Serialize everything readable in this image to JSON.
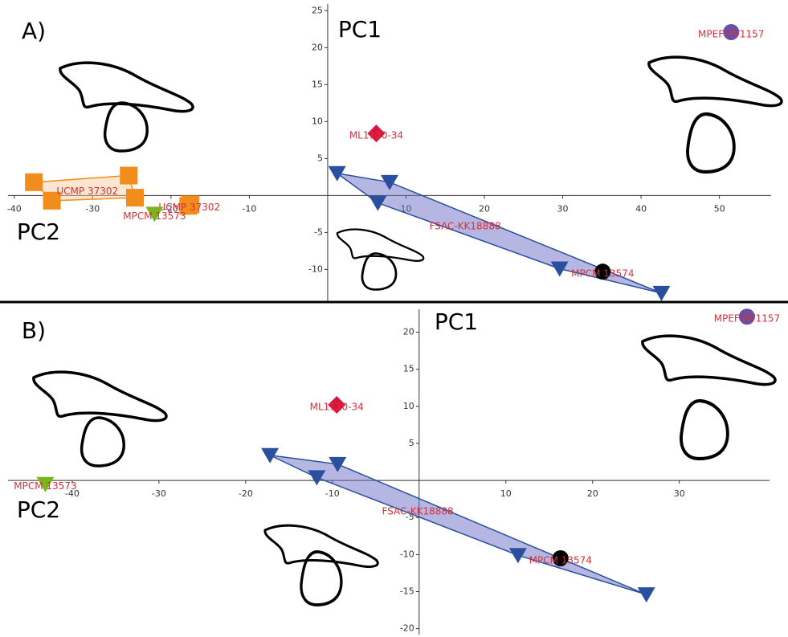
{
  "chart_data": [
    {
      "type": "scatter",
      "panel": "A)",
      "ylabel": "PC1",
      "xlabel": "PC2",
      "xlim": [
        -40.8,
        56.6
      ],
      "ylim": [
        -14.3,
        25.9
      ],
      "xticks": [
        -40,
        -30,
        -20,
        -10,
        10,
        20,
        30,
        40,
        50
      ],
      "yticks": [
        25,
        20,
        15,
        10,
        5,
        -5,
        -10
      ],
      "series": [
        {
          "name": "FSAC-KK18888",
          "color": "#2a4f9f",
          "marker": "triangle",
          "hull": true,
          "x": [
            1.2,
            7.9,
            42.6,
            29.6,
            6.4
          ],
          "y": [
            3.0,
            1.8,
            -13.2,
            -9.9,
            -1.0
          ]
        },
        {
          "name": "UCMP 37302",
          "color": "#f28c1c",
          "marker": "square",
          "hull": true,
          "x": [
            -37.5,
            -25.4,
            -24.6,
            -35.2
          ],
          "y": [
            1.8,
            2.7,
            -0.3,
            -0.7
          ]
        },
        {
          "name": "UCMP 37302",
          "color": "#f28c1c",
          "marker": "square",
          "hull": true,
          "x": [
            -17.5,
            -17.8
          ],
          "y": [
            -1.2,
            -1.4
          ]
        },
        {
          "name": "MPCM 13573",
          "color": "#7ab51d",
          "marker": "triangle",
          "hull": false,
          "x": [
            -22.1
          ],
          "y": [
            -2.5
          ]
        },
        {
          "name": "ML1120-34",
          "color": "#dc143c",
          "marker": "diamond",
          "hull": false,
          "x": [
            6.2
          ],
          "y": [
            8.4
          ]
        },
        {
          "name": "MPCM 13574",
          "color": "#000000",
          "marker": "circle",
          "hull": false,
          "x": [
            35.1
          ],
          "y": [
            -10.3
          ]
        },
        {
          "name": "MPEF-PV1157",
          "color": "#6a4fa0",
          "marker": "circle",
          "hull": false,
          "x": [
            51.5
          ],
          "y": [
            22.1
          ]
        }
      ]
    },
    {
      "type": "scatter",
      "panel": "B)",
      "ylabel": "PC1",
      "xlabel": "PC2",
      "xlim": [
        -47.4,
        40.4
      ],
      "ylim": [
        -20.8,
        23.1
      ],
      "xticks": [
        -40,
        -30,
        -20,
        -10,
        10,
        20,
        30
      ],
      "yticks": [
        20,
        15,
        10,
        5,
        -5,
        -10,
        -15,
        -20
      ],
      "series": [
        {
          "name": "FSAC-KK18888",
          "color": "#2a4f9f",
          "marker": "triangle",
          "hull": true,
          "x": [
            -17.2,
            -9.4,
            26.2,
            11.4,
            -11.8
          ],
          "y": [
            3.4,
            2.2,
            -15.4,
            -10.1,
            0.4
          ]
        },
        {
          "name": "MPCM 13573",
          "color": "#7ab51d",
          "marker": "triangle",
          "hull": false,
          "x": [
            -43.1
          ],
          "y": [
            -0.5
          ]
        },
        {
          "name": "ML1120-34",
          "color": "#dc143c",
          "marker": "diamond",
          "hull": false,
          "x": [
            -9.5
          ],
          "y": [
            10.2
          ]
        },
        {
          "name": "MPCM 13574",
          "color": "#000000",
          "marker": "circle",
          "hull": false,
          "x": [
            16.3
          ],
          "y": [
            -10.5
          ]
        },
        {
          "name": "MPEF-PV1157",
          "color": "#6a4fa0",
          "marker": "circle",
          "hull": false,
          "x": [
            37.8
          ],
          "y": [
            22.1
          ]
        }
      ]
    }
  ]
}
